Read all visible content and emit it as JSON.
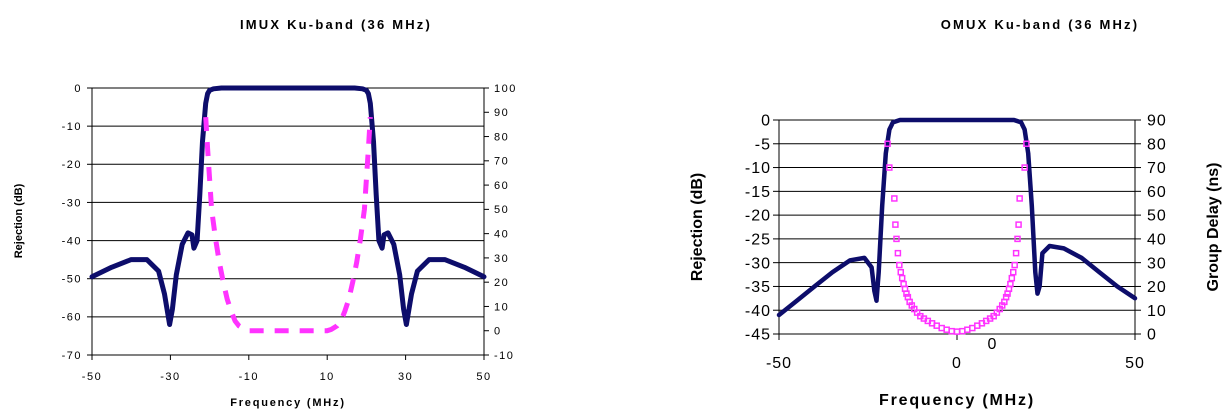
{
  "colors": {
    "rejection": "#0d0d6b",
    "group_delay": "#ff33ff",
    "grid": "#000000"
  },
  "chart_data": [
    {
      "type": "line",
      "title": "IMUX Ku-band (36 MHz)",
      "xlabel": "Frequency (MHz)",
      "ylabel": "Rejection (dB)",
      "y2label": "",
      "xlim": [
        -50,
        50
      ],
      "ylim": [
        -70,
        0
      ],
      "y2lim": [
        -10,
        100
      ],
      "x_ticks": [
        -50,
        -30,
        -10,
        10,
        30,
        50
      ],
      "y_ticks": [
        0,
        -10,
        -20,
        -30,
        -40,
        -50,
        -60,
        -70
      ],
      "y2_ticks": [
        100,
        90,
        80,
        70,
        60,
        50,
        40,
        30,
        20,
        10,
        0,
        -10
      ],
      "grid": "horizontal",
      "series": [
        {
          "name": "",
          "axis": "left",
          "style": "solid",
          "x": [
            -50,
            -45,
            -40,
            -36,
            -33,
            -31.5,
            -30.2,
            -29.5,
            -28.5,
            -27,
            -25.5,
            -24.5,
            -24,
            -23.2,
            -22.5,
            -21.8,
            -21,
            -20.5,
            -20,
            -19,
            -17,
            -10,
            0,
            10,
            17,
            19,
            20,
            20.5,
            21,
            21.8,
            22.5,
            23.2,
            24,
            24.5,
            25.5,
            27,
            28.5,
            29.5,
            30.2,
            31.5,
            33,
            36,
            40,
            45,
            50
          ],
          "y": [
            -49.5,
            -47,
            -45,
            -45,
            -48,
            -54,
            -62,
            -58,
            -49,
            -41,
            -38,
            -38.5,
            -42,
            -40,
            -28,
            -14,
            -4,
            -1.5,
            -0.6,
            -0.2,
            0,
            0,
            0,
            0,
            0,
            -0.2,
            -0.6,
            -1.5,
            -4,
            -14,
            -28,
            -40,
            -42,
            -38.5,
            -38,
            -41,
            -49,
            -58,
            -62,
            -54,
            -48,
            -45,
            -45,
            -47,
            -49.5
          ]
        },
        {
          "name": "",
          "axis": "right",
          "style": "dashed",
          "x": [
            -21,
            -20.5,
            -19.5,
            -18.5,
            -17.5,
            -16.5,
            -15.5,
            -14.5,
            -13.5,
            -12.5,
            -11,
            -10,
            0,
            10,
            11,
            12.5,
            13.5,
            14.5,
            15.5,
            16.5,
            17.5,
            18.5,
            19.5,
            20.5,
            21
          ],
          "y": [
            88,
            75,
            50,
            38,
            28,
            20,
            13,
            8,
            4,
            2,
            0.5,
            0,
            0,
            0,
            0.5,
            2,
            4,
            8,
            13,
            20,
            28,
            38,
            50,
            75,
            88
          ]
        }
      ]
    },
    {
      "type": "line",
      "title": "OMUX Ku-band (36 MHz)",
      "xlabel": "Frequency (MHz)",
      "ylabel": "Rejection (dB)",
      "y2label": "Group Delay (ns)",
      "xlim": [
        -50,
        50
      ],
      "ylim": [
        -45,
        0
      ],
      "y2lim": [
        0,
        90
      ],
      "x_ticks": [
        -50,
        0,
        50
      ],
      "y_ticks": [
        0,
        -5,
        -10,
        -15,
        -20,
        -25,
        -30,
        -35,
        -40,
        -45
      ],
      "y2_ticks": [
        90,
        80,
        70,
        60,
        50,
        40,
        30,
        20,
        10,
        0
      ],
      "grid": "horizontal",
      "annotation": "0",
      "series": [
        {
          "name": "",
          "axis": "left",
          "style": "solid",
          "x": [
            -50,
            -45,
            -40,
            -35,
            -30,
            -26,
            -24,
            -23.2,
            -22.6,
            -22,
            -21,
            -20,
            -19,
            -18,
            -16,
            -10,
            0,
            10,
            16,
            18,
            19,
            20,
            21,
            22,
            22.6,
            23.2,
            24,
            26,
            30,
            35,
            40,
            45,
            50
          ],
          "y": [
            -41,
            -38,
            -35,
            -32,
            -29.5,
            -29,
            -31,
            -36,
            -38,
            -32,
            -18,
            -7,
            -2,
            -0.5,
            0,
            0,
            0,
            0,
            0,
            -0.5,
            -2,
            -7,
            -18,
            -32,
            -36.5,
            -35,
            -28,
            -26.5,
            -27,
            -29,
            -32,
            -35,
            -37.5
          ],
          "note": "right flank drawn as fitted shape"
        },
        {
          "name": "",
          "axis": "right",
          "style": "markers",
          "x": [
            -19.5,
            -19,
            -17.6,
            -17.3,
            -17,
            -16.6,
            -16.2,
            -15.8,
            -15.4,
            -15,
            -14.6,
            -14.2,
            -13.8,
            -13.3,
            -12.7,
            -12,
            -11.2,
            -10.3,
            -9.3,
            -8.2,
            -7,
            -5.7,
            -4.3,
            -2.9,
            -1.5,
            0,
            1.5,
            2.9,
            4.3,
            5.7,
            7,
            8.2,
            9.3,
            10.3,
            11.2,
            12,
            12.7,
            13.3,
            13.8,
            14.2,
            14.6,
            15,
            15.4,
            15.8,
            16.2,
            16.6,
            17,
            17.3,
            17.6,
            19,
            19.5
          ],
          "y": [
            80,
            70,
            57,
            46,
            40,
            34,
            29,
            26,
            23.5,
            21,
            19,
            17,
            15.5,
            13.5,
            12,
            10.5,
            9,
            7.5,
            6.5,
            5.5,
            4.5,
            3.5,
            2.5,
            1.8,
            1.2,
            1,
            1.2,
            1.8,
            2.5,
            3.5,
            4.5,
            5.5,
            6.5,
            7.5,
            9,
            10.5,
            12,
            13.5,
            15.5,
            17,
            19,
            21,
            23.5,
            26,
            29,
            34,
            40,
            46,
            57,
            70,
            80
          ]
        }
      ]
    }
  ]
}
